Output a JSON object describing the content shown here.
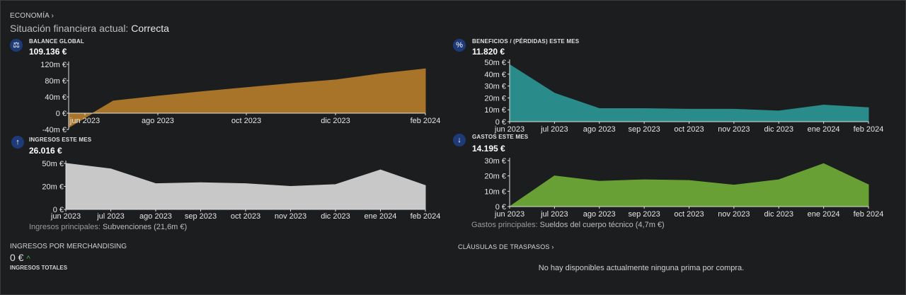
{
  "header": {
    "section_link": "ECONOMÍA",
    "status_label": "Situación financiera actual:",
    "status_value": "Correcta"
  },
  "cards": {
    "balance": {
      "title": "BALANCE GLOBAL",
      "value": "109.136 €",
      "icon": "balance-scale-icon",
      "glyph": "⚖"
    },
    "beneficios": {
      "title": "BENEFICIOS / (PÉRDIDAS) ESTE MES",
      "value": "11.820 €",
      "icon": "percent-icon",
      "glyph": "%"
    },
    "ingresos": {
      "title": "INGRESOS ESTE MES",
      "value": "26.016 €",
      "icon": "arrow-up-icon",
      "glyph": "↑",
      "note_label": "Ingresos principales:",
      "note_value": "Subvenciones (21,6m €)"
    },
    "gastos": {
      "title": "GASTOS ESTE MES",
      "value": "14.195 €",
      "icon": "arrow-down-icon",
      "glyph": "↓",
      "note_label": "Gastos principales:",
      "note_value": "Sueldos del cuerpo técnico (4,7m €)"
    }
  },
  "merchandising": {
    "label": "INGRESOS POR MERCHANDISING",
    "value": "0 €",
    "arrow": "^"
  },
  "totales_label": "INGRESOS TOTALES",
  "clausulas": {
    "label": "CLÁUSULAS DE TRASPASOS",
    "message": "No hay disponibles actualmente ninguna prima por compra."
  },
  "colors": {
    "balance": "#a8742a",
    "beneficios": "#2a8b8b",
    "ingresos": "#c8c8c8",
    "gastos": "#68a035",
    "icon_bg": "#1f3a78"
  },
  "chart_data": [
    {
      "id": "balance",
      "type": "area",
      "color": "#a8742a",
      "x": [
        "2023-06-01",
        "2023-07-01",
        "2023-08-01",
        "2023-09-01",
        "2023-10-01",
        "2023-11-01",
        "2023-12-01",
        "2024-01-01",
        "2024-02-01"
      ],
      "values": [
        -35,
        30,
        42,
        53,
        63,
        73,
        82,
        97,
        109
      ],
      "xticks": [
        "jun 2023",
        "ago 2023",
        "oct 2023",
        "dic 2023",
        "feb 2024"
      ],
      "yticks": [
        "120m €",
        "80m €",
        "40m €",
        "0 €",
        "-40m €"
      ],
      "ylim": [
        -40,
        120
      ]
    },
    {
      "id": "beneficios",
      "type": "area",
      "color": "#2a8b8b",
      "x": [
        "jun 2023",
        "jul 2023",
        "ago 2023",
        "sep 2023",
        "oct 2023",
        "nov 2023",
        "dic 2023",
        "ene 2024",
        "feb 2024"
      ],
      "values": [
        48,
        24,
        11,
        11,
        10.5,
        10.5,
        9,
        14,
        11.8
      ],
      "xticks": [
        "jun 2023",
        "jul 2023",
        "ago 2023",
        "sep 2023",
        "oct 2023",
        "nov 2023",
        "dic 2023",
        "ene 2024",
        "feb 2024"
      ],
      "yticks": [
        "50m €",
        "40m €",
        "30m €",
        "20m €",
        "10m €",
        "0 €"
      ],
      "ylim": [
        0,
        50
      ]
    },
    {
      "id": "ingresos",
      "type": "area",
      "color": "#c8c8c8",
      "x": [
        "jun 2023",
        "jul 2023",
        "ago 2023",
        "sep 2023",
        "oct 2023",
        "nov 2023",
        "dic 2023",
        "ene 2024",
        "feb 2024"
      ],
      "values": [
        50,
        44,
        28,
        29,
        28,
        25,
        27,
        43,
        26
      ],
      "xticks": [
        "jun 2023",
        "jul 2023",
        "ago 2023",
        "sep 2023",
        "oct 2023",
        "nov 2023",
        "dic 2023",
        "ene 2024",
        "feb 2024"
      ],
      "yticks": [
        "50m €",
        "20m €",
        "0 €"
      ],
      "ylim": [
        0,
        50
      ]
    },
    {
      "id": "gastos",
      "type": "area",
      "color": "#68a035",
      "x": [
        "jun 2023",
        "jul 2023",
        "ago 2023",
        "sep 2023",
        "oct 2023",
        "nov 2023",
        "dic 2023",
        "ene 2024",
        "feb 2024"
      ],
      "values": [
        0,
        20,
        16.5,
        17.5,
        17,
        14,
        17.5,
        28,
        14.2
      ],
      "xticks": [
        "jun 2023",
        "jul 2023",
        "ago 2023",
        "sep 2023",
        "oct 2023",
        "nov 2023",
        "dic 2023",
        "ene 2024",
        "feb 2024"
      ],
      "yticks": [
        "30m €",
        "20m €",
        "10m €",
        "0 €"
      ],
      "ylim": [
        0,
        30
      ]
    }
  ]
}
